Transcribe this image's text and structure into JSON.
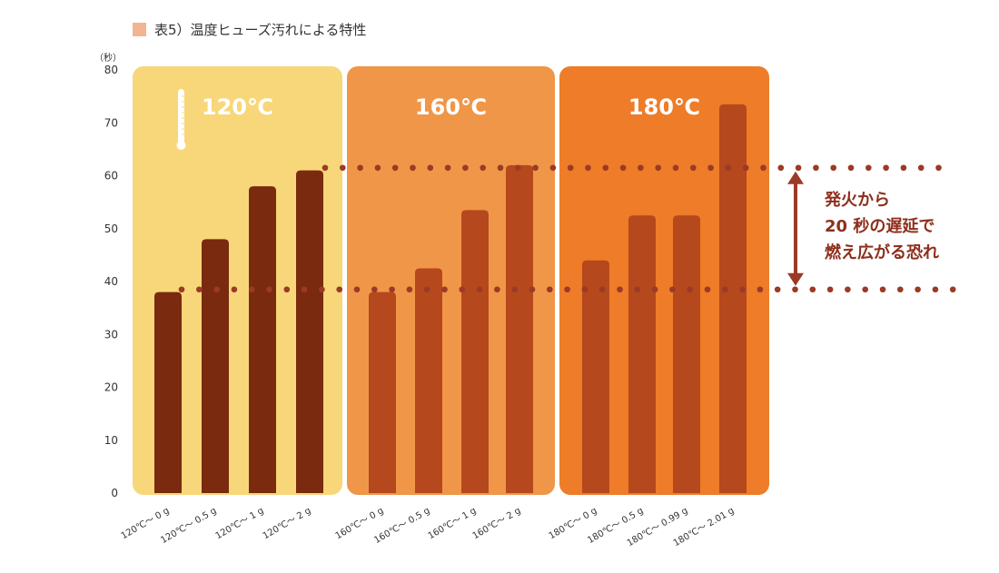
{
  "title": "表5）温度ヒューズ汚れによる特性",
  "colors": {
    "legend_swatch": "#F2B491",
    "panel_120": "#F7D77A",
    "panel_160": "#F09649",
    "panel_180": "#EE7C28",
    "bar_120": "#7A2A0F",
    "bar_160": "#B5481D",
    "bar_180": "#B5481D",
    "dotted_line": "#9B3A26",
    "arrow": "#9B3A26",
    "annotation_text": "#8E2F1C",
    "panel_label": "#FFFFFF",
    "axis_text": "#333333"
  },
  "chart_data": {
    "type": "bar",
    "title": "表5）温度ヒューズ汚れによる特性",
    "ylabel": "（秒）",
    "ylim": [
      0,
      80
    ],
    "yticks": [
      0,
      10,
      20,
      30,
      40,
      50,
      60,
      70,
      80
    ],
    "grid": false,
    "groups": [
      {
        "label": "120℃",
        "icon": "thermometer-icon",
        "categories": [
          "120℃～ 0 g",
          "120℃～ 0.5 g",
          "120℃～ 1 g",
          "120℃～ 2 g"
        ],
        "values": [
          38,
          48,
          58,
          61
        ]
      },
      {
        "label": "160℃",
        "categories": [
          "160℃～ 0 g",
          "160℃～ 0.5 g",
          "160℃～ 1 g",
          "160℃～ 2 g"
        ],
        "values": [
          38,
          42.5,
          53.5,
          62
        ]
      },
      {
        "label": "180℃",
        "categories": [
          "180℃～ 0 g",
          "180℃～ 0.5 g",
          "180℃～ 0.99 g",
          "180℃～ 2.01 g"
        ],
        "values": [
          44,
          52.5,
          52.5,
          73.5
        ]
      }
    ],
    "reference_lines": [
      61.5,
      38.5
    ],
    "annotation": [
      "発火から",
      "20 秒の遅延で",
      "燃え広がる恐れ"
    ]
  }
}
